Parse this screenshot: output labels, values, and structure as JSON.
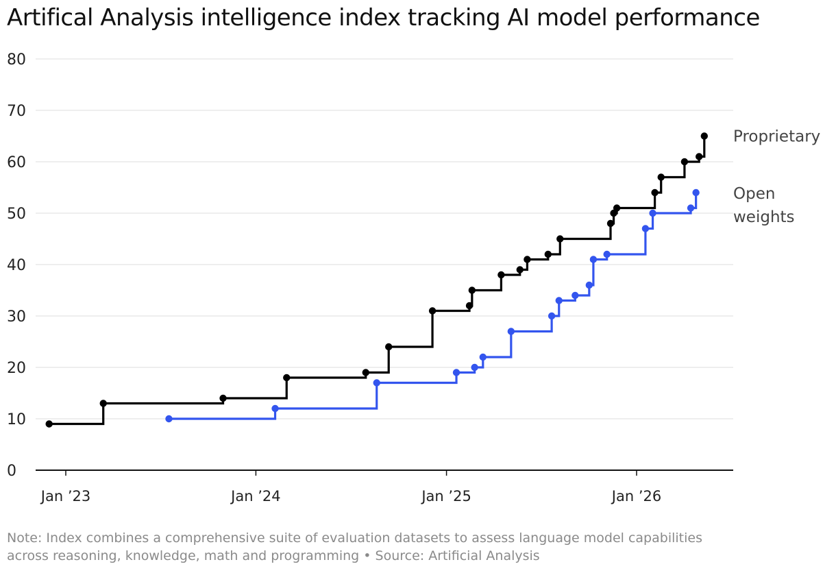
{
  "title": "Artifical Analysis intelligence index tracking AI model performance",
  "note": {
    "line1": "Note: Index combines a comprehensive suite of evaluation datasets to assess language model capabilities",
    "line2": "across reasoning, knowledge, math and programming • Source: Artificial Analysis"
  },
  "chart_data": {
    "type": "line",
    "step": true,
    "title": "Artifical Analysis intelligence index tracking AI model performance",
    "xlabel": "",
    "ylabel": "",
    "ylim": [
      0,
      80
    ],
    "yticks": [
      0,
      10,
      20,
      30,
      40,
      50,
      60,
      70,
      80
    ],
    "xlim": [
      "2022-12-10",
      "2026-06-01"
    ],
    "xticks": [
      {
        "date": "2023-01-01",
        "label": "Jan ’23"
      },
      {
        "date": "2024-01-01",
        "label": "Jan ’24"
      },
      {
        "date": "2025-01-01",
        "label": "Jan ’25"
      },
      {
        "date": "2026-01-01",
        "label": "Jan ’26"
      }
    ],
    "grid": true,
    "series": [
      {
        "name": "Proprietary",
        "color": "#000000",
        "points": [
          {
            "x": "2022-11-30",
            "y": 9
          },
          {
            "x": "2023-03-14",
            "y": 13
          },
          {
            "x": "2023-10-30",
            "y": 14
          },
          {
            "x": "2024-02-29",
            "y": 18
          },
          {
            "x": "2024-07-30",
            "y": 19
          },
          {
            "x": "2024-09-12",
            "y": 24
          },
          {
            "x": "2024-12-05",
            "y": 31
          },
          {
            "x": "2025-02-14",
            "y": 32
          },
          {
            "x": "2025-02-19",
            "y": 35
          },
          {
            "x": "2025-04-16",
            "y": 38
          },
          {
            "x": "2025-05-22",
            "y": 39
          },
          {
            "x": "2025-06-05",
            "y": 41
          },
          {
            "x": "2025-07-15",
            "y": 42
          },
          {
            "x": "2025-08-07",
            "y": 45
          },
          {
            "x": "2025-11-12",
            "y": 48
          },
          {
            "x": "2025-11-18",
            "y": 50
          },
          {
            "x": "2025-11-24",
            "y": 51
          },
          {
            "x": "2026-02-05",
            "y": 54
          },
          {
            "x": "2026-02-17",
            "y": 57
          },
          {
            "x": "2026-04-03",
            "y": 60
          },
          {
            "x": "2026-05-01",
            "y": 61
          },
          {
            "x": "2026-05-11",
            "y": 65
          }
        ]
      },
      {
        "name": "Open weights",
        "label_lines": [
          "Open",
          "weights"
        ],
        "color": "#3355ee",
        "points": [
          {
            "x": "2023-07-18",
            "y": 10
          },
          {
            "x": "2024-02-07",
            "y": 12
          },
          {
            "x": "2024-08-20",
            "y": 17
          },
          {
            "x": "2025-01-20",
            "y": 19
          },
          {
            "x": "2025-02-24",
            "y": 20
          },
          {
            "x": "2025-03-12",
            "y": 22
          },
          {
            "x": "2025-05-05",
            "y": 27
          },
          {
            "x": "2025-07-22",
            "y": 30
          },
          {
            "x": "2025-08-05",
            "y": 33
          },
          {
            "x": "2025-09-05",
            "y": 34
          },
          {
            "x": "2025-10-02",
            "y": 36
          },
          {
            "x": "2025-10-10",
            "y": 41
          },
          {
            "x": "2025-11-05",
            "y": 42
          },
          {
            "x": "2026-01-18",
            "y": 47
          },
          {
            "x": "2026-02-01",
            "y": 50
          },
          {
            "x": "2026-04-15",
            "y": 51
          },
          {
            "x": "2026-04-25",
            "y": 54
          }
        ]
      }
    ]
  }
}
